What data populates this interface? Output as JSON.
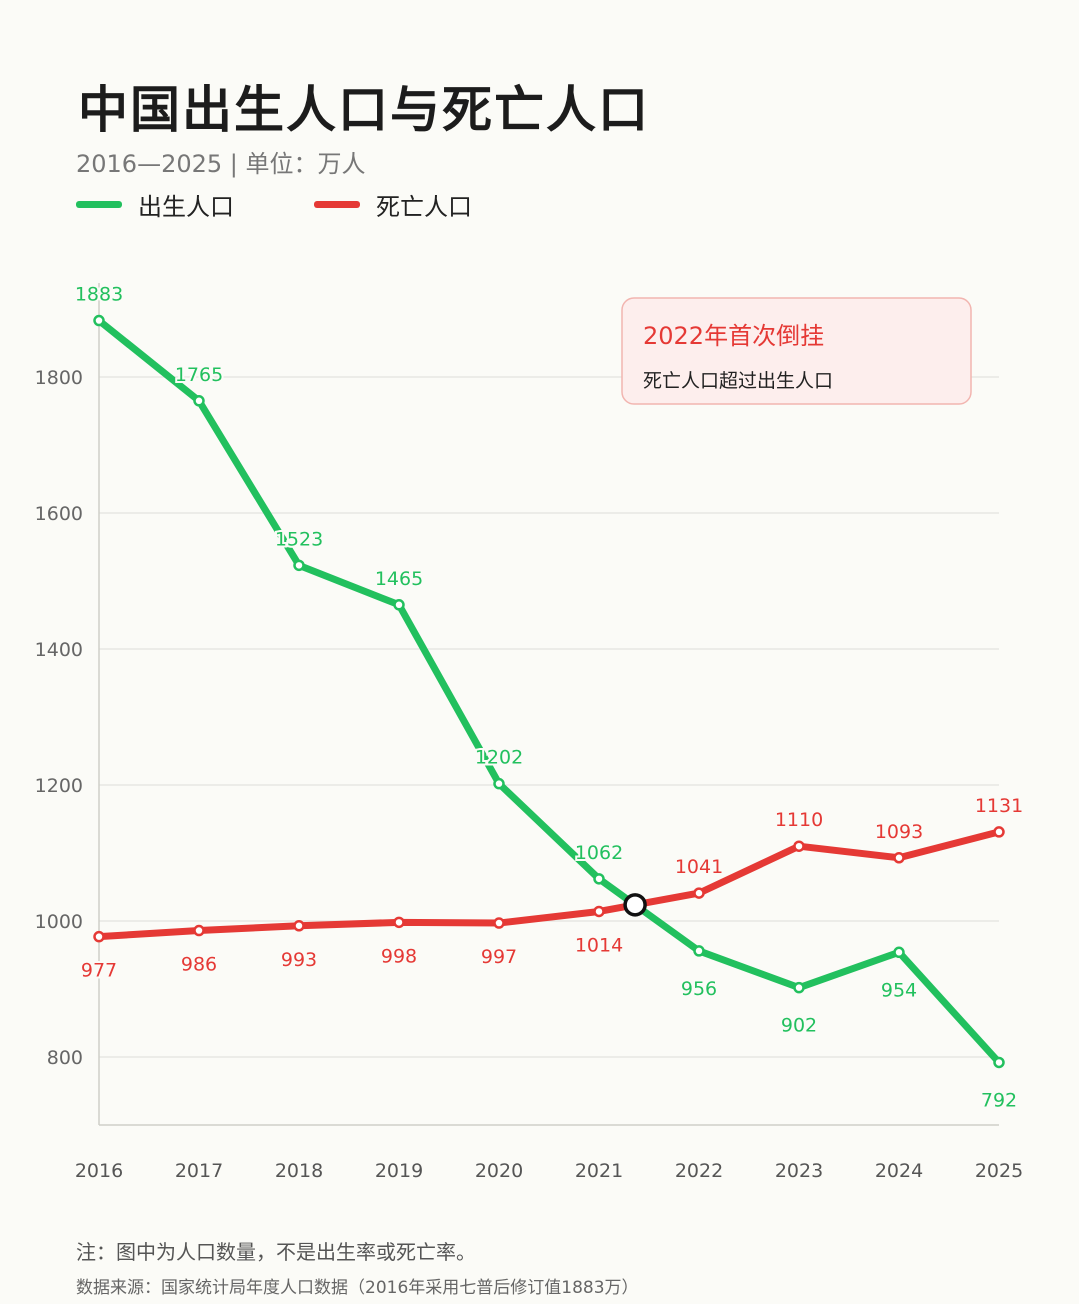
{
  "header": {
    "title": "中国出生人口与死亡人口",
    "subtitle": "2016—2025 | 单位：万人"
  },
  "legend": [
    {
      "name": "出生人口",
      "color": "#22c05e"
    },
    {
      "name": "死亡人口",
      "color": "#e53935"
    }
  ],
  "annotation": {
    "title": "2022年首次倒挂",
    "text": "死亡人口超过出生人口"
  },
  "footer": {
    "note": "注：图中为人口数量，不是出生率或死亡率。",
    "source": "数据来源：国家统计局年度人口数据（2016年采用七普后修订值1883万）"
  },
  "chart_data": {
    "type": "line",
    "x": [
      "2016",
      "2017",
      "2018",
      "2019",
      "2020",
      "2021",
      "2022",
      "2023",
      "2024",
      "2025"
    ],
    "yticks": [
      800,
      1000,
      1200,
      1400,
      1600,
      1800
    ],
    "ylim": [
      700,
      1900
    ],
    "grid": true,
    "series": [
      {
        "name": "出生人口",
        "color": "#22c05e",
        "values": [
          1883,
          1765,
          1523,
          1465,
          1202,
          1062,
          956,
          902,
          954,
          792
        ]
      },
      {
        "name": "死亡人口",
        "color": "#e53935",
        "values": [
          977,
          986,
          993,
          998,
          997,
          1014,
          1041,
          1110,
          1093,
          1131
        ]
      }
    ],
    "crossover_marker": true
  }
}
